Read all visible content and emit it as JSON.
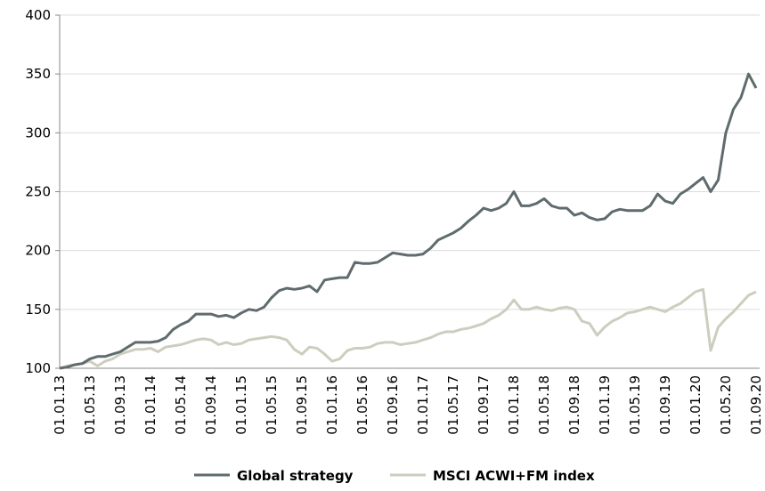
{
  "chart_data": {
    "type": "line",
    "categories": [
      "01.01.13",
      null,
      null,
      null,
      "01.05.13",
      null,
      null,
      null,
      "01.09.13",
      null,
      null,
      null,
      "01.01.14",
      null,
      null,
      null,
      "01.05.14",
      null,
      null,
      null,
      "01.09.14",
      null,
      null,
      null,
      "01.01.15",
      null,
      null,
      null,
      "01.05.15",
      null,
      null,
      null,
      "01.09.15",
      null,
      null,
      null,
      "01.01.16",
      null,
      null,
      null,
      "01.05.16",
      null,
      null,
      null,
      "01.09.16",
      null,
      null,
      null,
      "01.01.17",
      null,
      null,
      null,
      "01.05.17",
      null,
      null,
      null,
      "01.09.17",
      null,
      null,
      null,
      "01.01.18",
      null,
      null,
      null,
      "01.05.18",
      null,
      null,
      null,
      "01.09.18",
      null,
      null,
      null,
      "01.01.19",
      null,
      null,
      null,
      "01.05.19",
      null,
      null,
      null,
      "01.09.19",
      null,
      null,
      null,
      "01.01.20",
      null,
      null,
      null,
      "01.05.20",
      null,
      null,
      null,
      "01.09.20"
    ],
    "series": [
      {
        "name": "Global strategy",
        "color": "#5f6b6d",
        "values": [
          100,
          101,
          103,
          104,
          108,
          110,
          110,
          112,
          114,
          118,
          122,
          122,
          122,
          123,
          126,
          133,
          137,
          140,
          146,
          146,
          146,
          144,
          145,
          143,
          147,
          150,
          149,
          152,
          160,
          166,
          168,
          167,
          168,
          170,
          165,
          175,
          176,
          177,
          177,
          190,
          189,
          189,
          190,
          194,
          198,
          197,
          196,
          196,
          197,
          202,
          209,
          212,
          215,
          219,
          225,
          230,
          236,
          234,
          236,
          240,
          250,
          238,
          238,
          240,
          244,
          238,
          236,
          236,
          230,
          232,
          228,
          226,
          227,
          233,
          235,
          234,
          234,
          234,
          238,
          248,
          242,
          240,
          248,
          252,
          257,
          262,
          250,
          260,
          300,
          320,
          330,
          350,
          338
        ]
      },
      {
        "name": "MSCI ACWI+FM index",
        "color": "#cdcdbf",
        "values": [
          100,
          102,
          103,
          104,
          106,
          102,
          106,
          108,
          112,
          114,
          116,
          116,
          117,
          114,
          118,
          119,
          120,
          122,
          124,
          125,
          124,
          120,
          122,
          120,
          121,
          124,
          125,
          126,
          127,
          126,
          124,
          116,
          112,
          118,
          117,
          112,
          106,
          108,
          115,
          117,
          117,
          118,
          121,
          122,
          122,
          120,
          121,
          122,
          124,
          126,
          129,
          131,
          131,
          133,
          134,
          136,
          138,
          142,
          145,
          150,
          158,
          150,
          150,
          152,
          150,
          149,
          151,
          152,
          150,
          140,
          138,
          128,
          135,
          140,
          143,
          147,
          148,
          150,
          152,
          150,
          148,
          152,
          155,
          160,
          165,
          167,
          115,
          135,
          142,
          148,
          155,
          162,
          165
        ]
      }
    ],
    "ylim": [
      100,
      400
    ],
    "yticks": [
      100,
      150,
      200,
      250,
      300,
      350,
      400
    ],
    "grid": true
  }
}
